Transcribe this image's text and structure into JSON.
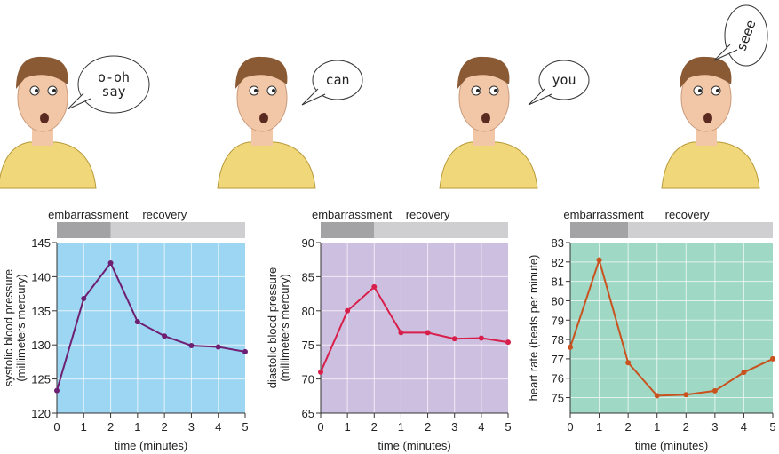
{
  "speech": [
    "o-oh say",
    "can",
    "you",
    "seee"
  ],
  "colors": {
    "skin": "#f2c7a8",
    "shirt": "#f0d77a",
    "hair": "#8a5a35",
    "phase_embarrassment": "#a3a3a6",
    "phase_recovery": "#cfcfd1"
  },
  "chart_data": [
    {
      "type": "line",
      "phases": [
        "embarrassment",
        "recovery"
      ],
      "x_ticks": [
        "0",
        "1",
        "2",
        "1",
        "2",
        "3",
        "4",
        "5"
      ],
      "x": [
        0,
        1,
        2,
        3,
        4,
        5,
        6,
        7
      ],
      "values": [
        123.3,
        136.8,
        142.0,
        133.4,
        131.3,
        129.9,
        129.7,
        129.0
      ],
      "ylabel": [
        "systolic blood pressure",
        "(millimeters mercury)"
      ],
      "xlabel": "time (minutes)",
      "ylim": [
        120,
        145
      ],
      "y_ticks": [
        "120",
        "125",
        "130",
        "135",
        "140",
        "145"
      ],
      "bg": "#9dd6f3",
      "line": "#6e1f72",
      "grid": true
    },
    {
      "type": "line",
      "phases": [
        "embarrassment",
        "recovery"
      ],
      "x_ticks": [
        "0",
        "1",
        "2",
        "1",
        "2",
        "3",
        "4",
        "5"
      ],
      "x": [
        0,
        1,
        2,
        3,
        4,
        5,
        6,
        7
      ],
      "values": [
        71.0,
        80.0,
        83.5,
        76.8,
        76.8,
        75.9,
        76.0,
        75.4
      ],
      "ylabel": [
        "diastolic blood pressure",
        "(millimeters mercury)"
      ],
      "xlabel": "time (minutes)",
      "ylim": [
        65,
        90
      ],
      "y_ticks": [
        "65",
        "70",
        "75",
        "80",
        "85",
        "90"
      ],
      "bg": "#cdbfe0",
      "line": "#d81e4a",
      "grid": true
    },
    {
      "type": "line",
      "phases": [
        "embarrassment",
        "recovery"
      ],
      "x_ticks": [
        "0",
        "1",
        "2",
        "1",
        "2",
        "3",
        "4",
        "5"
      ],
      "x": [
        0,
        1,
        2,
        3,
        4,
        5,
        6,
        7
      ],
      "values": [
        77.6,
        82.1,
        76.8,
        75.1,
        75.15,
        75.35,
        76.3,
        77.0
      ],
      "ylabel": [
        "heart rate (beats per minute)"
      ],
      "xlabel": "time (minutes)",
      "ylim": [
        74.2,
        83
      ],
      "y_ticks": [
        "75",
        "76",
        "77",
        "78",
        "79",
        "80",
        "81",
        "82",
        "83"
      ],
      "bg": "#9fd8c5",
      "line": "#c9521e",
      "grid": true
    }
  ]
}
